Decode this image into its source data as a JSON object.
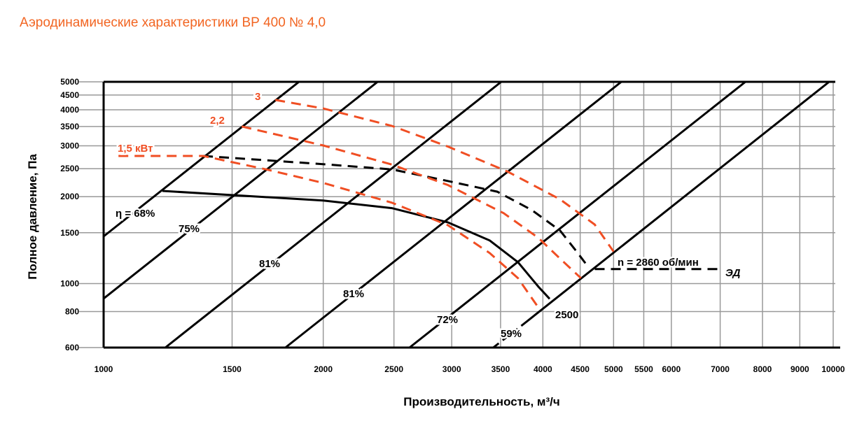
{
  "chart_data": {
    "type": "line",
    "title": "Аэродинамические характеристики ВР 400 № 4,0",
    "xlabel": "Производительность, м³/ч",
    "ylabel": "Полное давление, Па",
    "xscale": "log",
    "yscale": "log",
    "xlim": [
      1000,
      10000
    ],
    "ylim": [
      600,
      5000
    ],
    "grid": true,
    "xticks": [
      1000,
      1500,
      2000,
      2500,
      3000,
      3500,
      4000,
      4500,
      5000,
      5500,
      6000,
      7000,
      8000,
      9000,
      10000
    ],
    "yticks": [
      600,
      800,
      1000,
      1500,
      2000,
      2500,
      3000,
      3500,
      4000,
      4500,
      5000
    ],
    "efficiency_lines": [
      {
        "label": "η = 68%",
        "ref": [
          1000,
          1457
        ]
      },
      {
        "label": "75%",
        "ref": [
          1000,
          887
        ]
      },
      {
        "label": "81%",
        "ref": [
          1215,
          600
        ]
      },
      {
        "label": "81%",
        "ref": [
          1775,
          600
        ]
      },
      {
        "label": "72%",
        "ref": [
          2626,
          600
        ]
      },
      {
        "label": "59%",
        "ref": [
          3420,
          600
        ]
      }
    ],
    "series": [
      {
        "name": "2500",
        "color": "#000000",
        "dash": false,
        "x": [
          1204,
          2000,
          2483,
          2963,
          3383,
          3698,
          3944,
          4086
        ],
        "y": [
          2094,
          1940,
          1825,
          1630,
          1410,
          1186,
          975,
          885
        ]
      },
      {
        "name": "n = 2860 об/мин",
        "color": "#000000",
        "dash": true,
        "x": [
          1369,
          1990,
          2483,
          2963,
          3464,
          3859,
          4222,
          4450,
          4615
        ],
        "y": [
          2768,
          2594,
          2487,
          2267,
          2081,
          1800,
          1527,
          1291,
          1141
        ]
      },
      {
        "name": "ЭД",
        "color": "#000000",
        "dash": true,
        "x": [
          4712,
          7000
        ],
        "y": [
          1123,
          1123
        ]
      },
      {
        "name": "1,5 кВт",
        "color": "#f04e23",
        "dash": true,
        "x": [
          1048,
          1369,
          1369,
          1670,
          2000,
          2483,
          2963,
          3383,
          3698,
          3944
        ],
        "y": [
          2768,
          2768,
          2768,
          2487,
          2232,
          1907,
          1594,
          1275,
          1044,
          825
        ]
      },
      {
        "name": "2,2",
        "color": "#f04e23",
        "dash": true,
        "x": [
          1546,
          2000,
          2483,
          2963,
          3534,
          3944,
          4222,
          4510
        ],
        "y": [
          3503,
          3010,
          2584,
          2196,
          1753,
          1439,
          1221,
          1044
        ]
      },
      {
        "name": "3",
        "color": "#f04e23",
        "dash": true,
        "x": [
          1719,
          2000,
          2483,
          2963,
          3574,
          4222,
          4710,
          5000
        ],
        "y": [
          4327,
          4042,
          3518,
          2984,
          2446,
          1958,
          1602,
          1291
        ]
      }
    ]
  }
}
